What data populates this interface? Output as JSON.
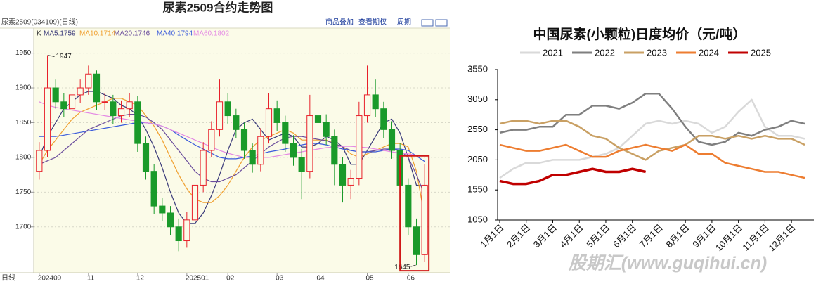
{
  "chart_data": [
    {
      "type": "candlestick",
      "title": "尿素2509合约走势图",
      "symbol": "尿素2509(034109)(日线)",
      "buttons": [
        "商品叠加",
        "查看期权",
        "周期"
      ],
      "k_label": "K",
      "x_label": "日线",
      "categories": [
        "202409",
        null,
        null,
        null,
        null,
        null,
        "11",
        null,
        null,
        null,
        null,
        null,
        "12",
        null,
        null,
        null,
        null,
        null,
        "202501",
        null,
        null,
        null,
        null,
        "02",
        null,
        null,
        null,
        null,
        null,
        "03",
        null,
        null,
        null,
        null,
        "04",
        null,
        null,
        null,
        null,
        null,
        "05",
        null,
        null,
        null,
        null,
        "06",
        null,
        null
      ],
      "open": [
        1780,
        1810,
        1900,
        1880,
        1870,
        1890,
        1900,
        1920,
        1880,
        1880,
        1860,
        1870,
        1880,
        1820,
        1780,
        1730,
        1720,
        1700,
        1680,
        1710,
        1760,
        1810,
        1840,
        1880,
        1860,
        1840,
        1810,
        1790,
        1830,
        1870,
        1850,
        1820,
        1800,
        1780,
        1860,
        1850,
        1830,
        1790,
        1760,
        1770,
        1860,
        1890,
        1870,
        1840,
        1810,
        1760,
        1700,
        1660
      ],
      "high": [
        1822,
        1947,
        1912,
        1892,
        1902,
        1912,
        1932,
        1925,
        1892,
        1890,
        1882,
        1892,
        1888,
        1830,
        1790,
        1742,
        1730,
        1712,
        1722,
        1772,
        1822,
        1852,
        1912,
        1892,
        1870,
        1850,
        1820,
        1842,
        1892,
        1882,
        1860,
        1832,
        1812,
        1890,
        1872,
        1862,
        1840,
        1800,
        1782,
        1880,
        1932,
        1912,
        1880,
        1852,
        1820,
        1770,
        1712,
        1790
      ],
      "low": [
        1768,
        1800,
        1870,
        1858,
        1860,
        1878,
        1890,
        1868,
        1868,
        1848,
        1850,
        1858,
        1808,
        1768,
        1718,
        1708,
        1688,
        1665,
        1670,
        1700,
        1750,
        1800,
        1830,
        1848,
        1828,
        1798,
        1778,
        1780,
        1820,
        1838,
        1808,
        1788,
        1740,
        1770,
        1838,
        1818,
        1760,
        1735,
        1740,
        1760,
        1850,
        1858,
        1828,
        1798,
        1748,
        1688,
        1645,
        1650
      ],
      "close": [
        1810,
        1900,
        1880,
        1870,
        1890,
        1900,
        1920,
        1880,
        1880,
        1860,
        1870,
        1880,
        1820,
        1780,
        1730,
        1720,
        1700,
        1680,
        1710,
        1760,
        1810,
        1840,
        1880,
        1860,
        1840,
        1810,
        1790,
        1830,
        1870,
        1850,
        1820,
        1800,
        1780,
        1860,
        1850,
        1830,
        1790,
        1760,
        1770,
        1860,
        1890,
        1870,
        1840,
        1810,
        1760,
        1700,
        1660,
        1760
      ],
      "up_color": "#e8202a",
      "down_color": "#1a9a2a",
      "series": [
        {
          "name": "MA5:1759",
          "color": "#3a3a7a",
          "values": [
            1800,
            1830,
            1850,
            1870,
            1880,
            1890,
            1895,
            1895,
            1890,
            1885,
            1875,
            1870,
            1860,
            1840,
            1815,
            1785,
            1750,
            1720,
            1705,
            1705,
            1720,
            1745,
            1775,
            1810,
            1840,
            1850,
            1855,
            1840,
            1825,
            1830,
            1835,
            1830,
            1815,
            1815,
            1820,
            1830,
            1825,
            1815,
            1790,
            1790,
            1810,
            1830,
            1850,
            1855,
            1835,
            1800,
            1760,
            1759
          ]
        },
        {
          "name": "MA10:1714",
          "color": "#f0a030",
          "values": [
            1790,
            1810,
            1825,
            1840,
            1855,
            1865,
            1870,
            1875,
            1880,
            1885,
            1885,
            1880,
            1875,
            1860,
            1845,
            1825,
            1800,
            1775,
            1755,
            1740,
            1735,
            1735,
            1745,
            1760,
            1780,
            1800,
            1815,
            1825,
            1830,
            1835,
            1840,
            1835,
            1825,
            1825,
            1825,
            1825,
            1820,
            1815,
            1805,
            1800,
            1805,
            1810,
            1815,
            1820,
            1820,
            1815,
            1780,
            1714
          ]
        },
        {
          "name": "MA20:1746",
          "color": "#6a4c9c",
          "values": [
            1790,
            1795,
            1800,
            1810,
            1820,
            1830,
            1840,
            1845,
            1850,
            1855,
            1860,
            1862,
            1862,
            1858,
            1850,
            1840,
            1825,
            1810,
            1795,
            1780,
            1770,
            1765,
            1765,
            1770,
            1775,
            1785,
            1795,
            1805,
            1815,
            1822,
            1828,
            1830,
            1830,
            1828,
            1826,
            1824,
            1820,
            1815,
            1810,
            1808,
            1808,
            1810,
            1812,
            1812,
            1810,
            1800,
            1775,
            1746
          ]
        },
        {
          "name": "MA40:1794",
          "color": "#3b5bdb",
          "values": [
            1830,
            1830,
            1830,
            1832,
            1834,
            1836,
            1838,
            1840,
            1842,
            1844,
            1846,
            1848,
            1850,
            1850,
            1848,
            1845,
            1840,
            1832,
            1825,
            1818,
            1812,
            1806,
            1800,
            1798,
            1798,
            1800,
            1802,
            1805,
            1808,
            1810,
            1812,
            1815,
            1818,
            1820,
            1820,
            1818,
            1815,
            1812,
            1810,
            1808,
            1808,
            1808,
            1810,
            1812,
            1812,
            1810,
            1802,
            1794
          ]
        },
        {
          "name": "MA60:1802",
          "color": "#e48ae4",
          "values": [
            1880,
            1875,
            1872,
            1870,
            1868,
            1866,
            1864,
            1862,
            1860,
            1858,
            1856,
            1854,
            1852,
            1850,
            1848,
            1845,
            1840,
            1835,
            1830,
            1825,
            1820,
            1815,
            1810,
            1806,
            1803,
            1800,
            1800,
            1800,
            1800,
            1802,
            1804,
            1806,
            1808,
            1810,
            1812,
            1814,
            1815,
            1816,
            1816,
            1815,
            1814,
            1812,
            1810,
            1808,
            1806,
            1805,
            1803,
            1802
          ]
        }
      ],
      "ylim": [
        1634,
        1986
      ],
      "yticks": [
        1700,
        1750,
        1800,
        1850,
        1900,
        1950
      ],
      "grid": true
    },
    {
      "type": "line",
      "title": "中国尿素(小颗粒)日度均价（元/吨）",
      "watermark": "股期汇(www.guqihui.cn)",
      "categories": [
        "1月1日",
        null,
        "2月1日",
        null,
        "3月1日",
        null,
        "4月1日",
        null,
        "5月1日",
        null,
        "6月1日",
        null,
        "7月1日",
        null,
        "8月1日",
        null,
        "9月1日",
        null,
        "10月1日",
        null,
        "11月1日",
        null,
        "12月1日",
        null
      ],
      "series": [
        {
          "name": "2021",
          "color": "#d9d9d9",
          "values": [
            1750,
            1900,
            2000,
            2000,
            2050,
            2050,
            2050,
            2100,
            2150,
            2250,
            2450,
            2650,
            2700,
            2650,
            2700,
            2650,
            2500,
            2600,
            2850,
            3050,
            2600,
            2450,
            2450,
            2400
          ]
        },
        {
          "name": "2022",
          "color": "#7f7f7f",
          "values": [
            2500,
            2550,
            2550,
            2600,
            2600,
            2800,
            2800,
            2950,
            2950,
            2900,
            3000,
            3150,
            3150,
            2900,
            2600,
            2350,
            2300,
            2350,
            2500,
            2450,
            2550,
            2600,
            2700,
            2650
          ]
        },
        {
          "name": "2023",
          "color": "#c9a064",
          "values": [
            2650,
            2700,
            2700,
            2650,
            2700,
            2700,
            2600,
            2450,
            2400,
            2250,
            2150,
            2050,
            2200,
            2250,
            2300,
            2450,
            2450,
            2400,
            2450,
            2400,
            2450,
            2400,
            2400,
            2300
          ]
        },
        {
          "name": "2024",
          "color": "#ed7d31",
          "values": [
            2300,
            2250,
            2200,
            2200,
            2250,
            2300,
            2200,
            2100,
            2100,
            2200,
            2250,
            2300,
            2250,
            2200,
            2300,
            2150,
            2150,
            2000,
            1950,
            1900,
            1850,
            1850,
            1800,
            1750
          ]
        },
        {
          "name": "2025",
          "color": "#c00000",
          "values": [
            1700,
            1650,
            1650,
            1700,
            1800,
            1800,
            1850,
            1900,
            1850,
            1850,
            1900,
            1850,
            null,
            null,
            null,
            null,
            null,
            null,
            null,
            null,
            null,
            null,
            null,
            null
          ]
        }
      ],
      "ylim": [
        1050,
        3550
      ],
      "yticks": [
        1050,
        1550,
        2050,
        2550,
        3050,
        3550
      ]
    }
  ]
}
